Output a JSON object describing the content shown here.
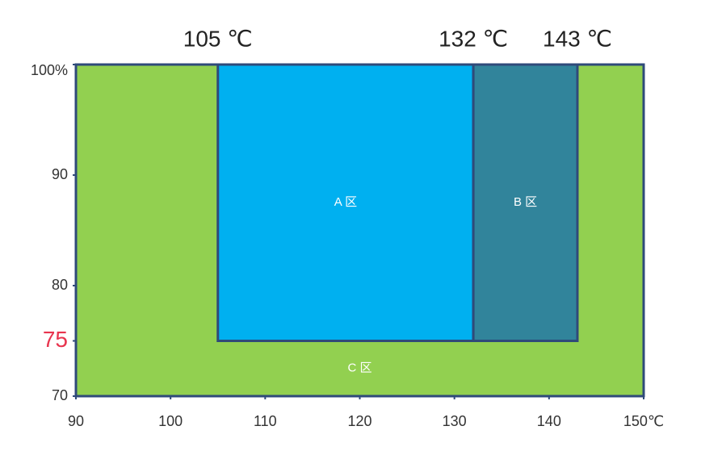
{
  "chart_data": {
    "type": "region",
    "regions": [
      {
        "name": "C 区",
        "color": "#92d050",
        "x": [
          90,
          150
        ],
        "y": [
          70,
          100
        ]
      },
      {
        "name": "A 区",
        "color": "#00b0f0",
        "x": [
          105,
          132
        ],
        "y": [
          75,
          100
        ]
      },
      {
        "name": "B 区",
        "color": "#31849b",
        "x": [
          132,
          143
        ],
        "y": [
          75,
          100
        ]
      }
    ],
    "annotations": [
      {
        "value": 105,
        "label": "105 ℃"
      },
      {
        "value": 132,
        "label": "132 ℃"
      },
      {
        "value": 143,
        "label": "143 ℃"
      }
    ],
    "xlim": [
      90,
      150
    ],
    "xticks": [
      90,
      100,
      110,
      120,
      130,
      140,
      {
        "value": 150,
        "label": "150℃"
      }
    ],
    "ylim": [
      70,
      100
    ],
    "yticks": [
      70,
      75,
      80,
      90,
      {
        "value": 100,
        "label": "100%"
      }
    ],
    "ytick_colors": [
      "#333333",
      "#e8344e",
      "#333333",
      "#333333",
      "#333333"
    ],
    "border_color": "#2f4a7a"
  }
}
